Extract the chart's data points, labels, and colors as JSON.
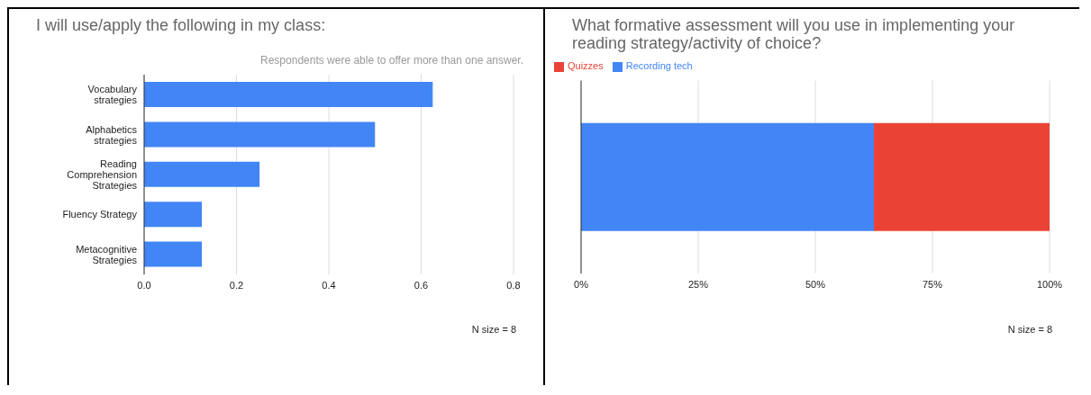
{
  "chart_data": [
    {
      "type": "bar",
      "orientation": "horizontal",
      "title": "I will use/apply the following in my class:",
      "subtitle": "Respondents were able to offer more than one answer.",
      "categories": [
        "Vocabulary strategies",
        "Alphabetics strategies",
        "Reading Comprehension Strategies",
        "Fluency Strategy",
        "Metacognitive Strategies"
      ],
      "series": [
        {
          "color": "#4285f4",
          "values": [
            0.625,
            0.5,
            0.25,
            0.125,
            0.125
          ]
        }
      ],
      "xlim": [
        0,
        0.8
      ],
      "xticks": [
        {
          "value": 0,
          "label": "0.0"
        },
        0.2,
        0.4,
        0.6,
        0.8
      ],
      "grid": "x",
      "legend": false,
      "annotations": [
        "N size = 8"
      ]
    },
    {
      "type": "bar",
      "orientation": "horizontal",
      "stacked": true,
      "title": "What formative assessment will you use in implementing your reading strategy/activity of choice?",
      "categories": [
        null
      ],
      "series": [
        {
          "name": "Recording tech",
          "color": "#4285f4",
          "values": [
            62.5
          ]
        },
        {
          "name": "Quizzes",
          "color": "#ea4335",
          "values": [
            37.5
          ]
        }
      ],
      "xlim": [
        0,
        100
      ],
      "xticks": [
        {
          "value": 0,
          "label": "0%"
        },
        {
          "value": 25,
          "label": "25%"
        },
        {
          "value": 50,
          "label": "50%"
        },
        {
          "value": 75,
          "label": "75%"
        },
        {
          "value": 100,
          "label": "100%"
        }
      ],
      "grid": "x",
      "legend": "top left",
      "annotations": [
        "N size = 8"
      ]
    }
  ]
}
